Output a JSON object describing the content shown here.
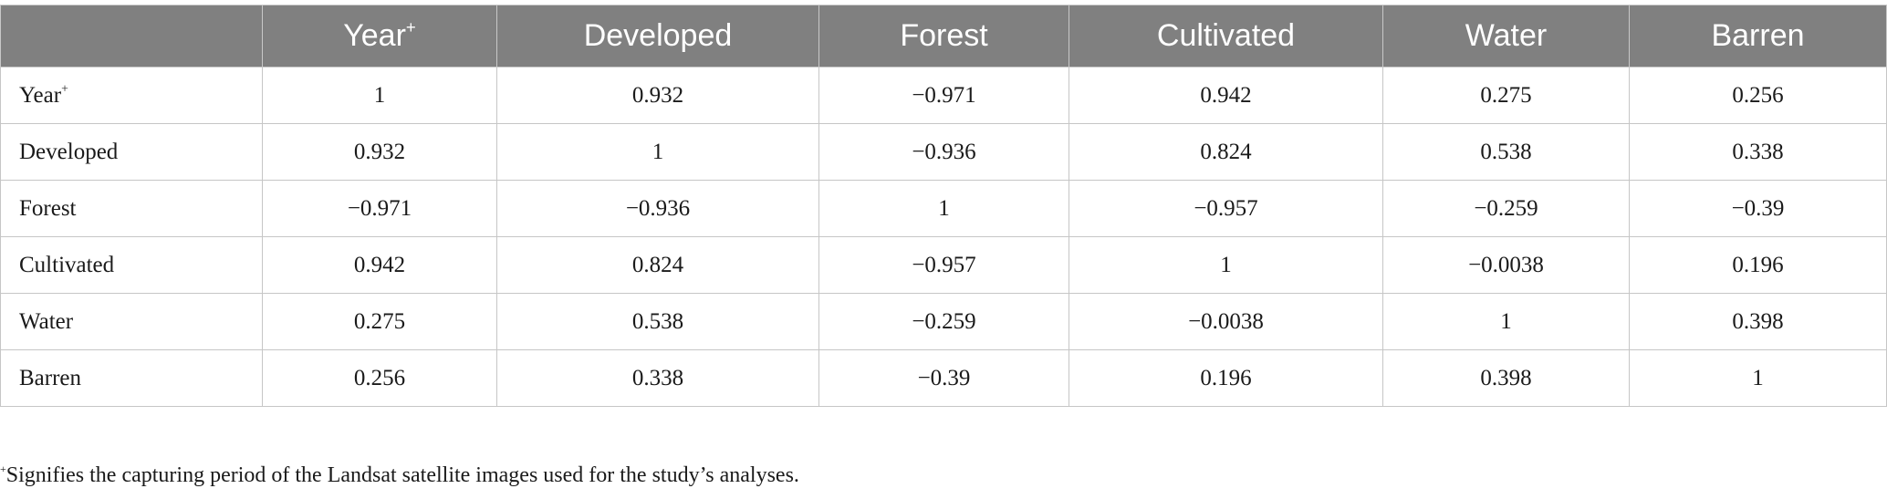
{
  "table": {
    "header_corner": "",
    "columns": [
      {
        "label": "Year",
        "sup": "+"
      },
      {
        "label": "Developed",
        "sup": ""
      },
      {
        "label": "Forest",
        "sup": ""
      },
      {
        "label": "Cultivated",
        "sup": ""
      },
      {
        "label": "Water",
        "sup": ""
      },
      {
        "label": "Barren",
        "sup": ""
      }
    ],
    "rows": [
      {
        "label": "Year",
        "sup": "+",
        "cells": [
          "1",
          "0.932",
          "−0.971",
          "0.942",
          "0.275",
          "0.256"
        ]
      },
      {
        "label": "Developed",
        "sup": "",
        "cells": [
          "0.932",
          "1",
          "−0.936",
          "0.824",
          "0.538",
          "0.338"
        ]
      },
      {
        "label": "Forest",
        "sup": "",
        "cells": [
          "−0.971",
          "−0.936",
          "1",
          "−0.957",
          "−0.259",
          "−0.39"
        ]
      },
      {
        "label": "Cultivated",
        "sup": "",
        "cells": [
          "0.942",
          "0.824",
          "−0.957",
          "1",
          "−0.0038",
          "0.196"
        ]
      },
      {
        "label": "Water",
        "sup": "",
        "cells": [
          "0.275",
          "0.538",
          "−0.259",
          "−0.0038",
          "1",
          "0.398"
        ]
      },
      {
        "label": "Barren",
        "sup": "",
        "cells": [
          "0.256",
          "0.338",
          "−0.39",
          "0.196",
          "0.398",
          "1"
        ]
      }
    ]
  },
  "footnote": {
    "marker": "+",
    "text": "Signifies the capturing period of the Landsat satellite images used for the study’s analyses."
  },
  "colors": {
    "header_bg": "#808080",
    "header_text": "#ffffff",
    "grid": "#c6c6c6",
    "body_text": "#1a1a1a"
  }
}
